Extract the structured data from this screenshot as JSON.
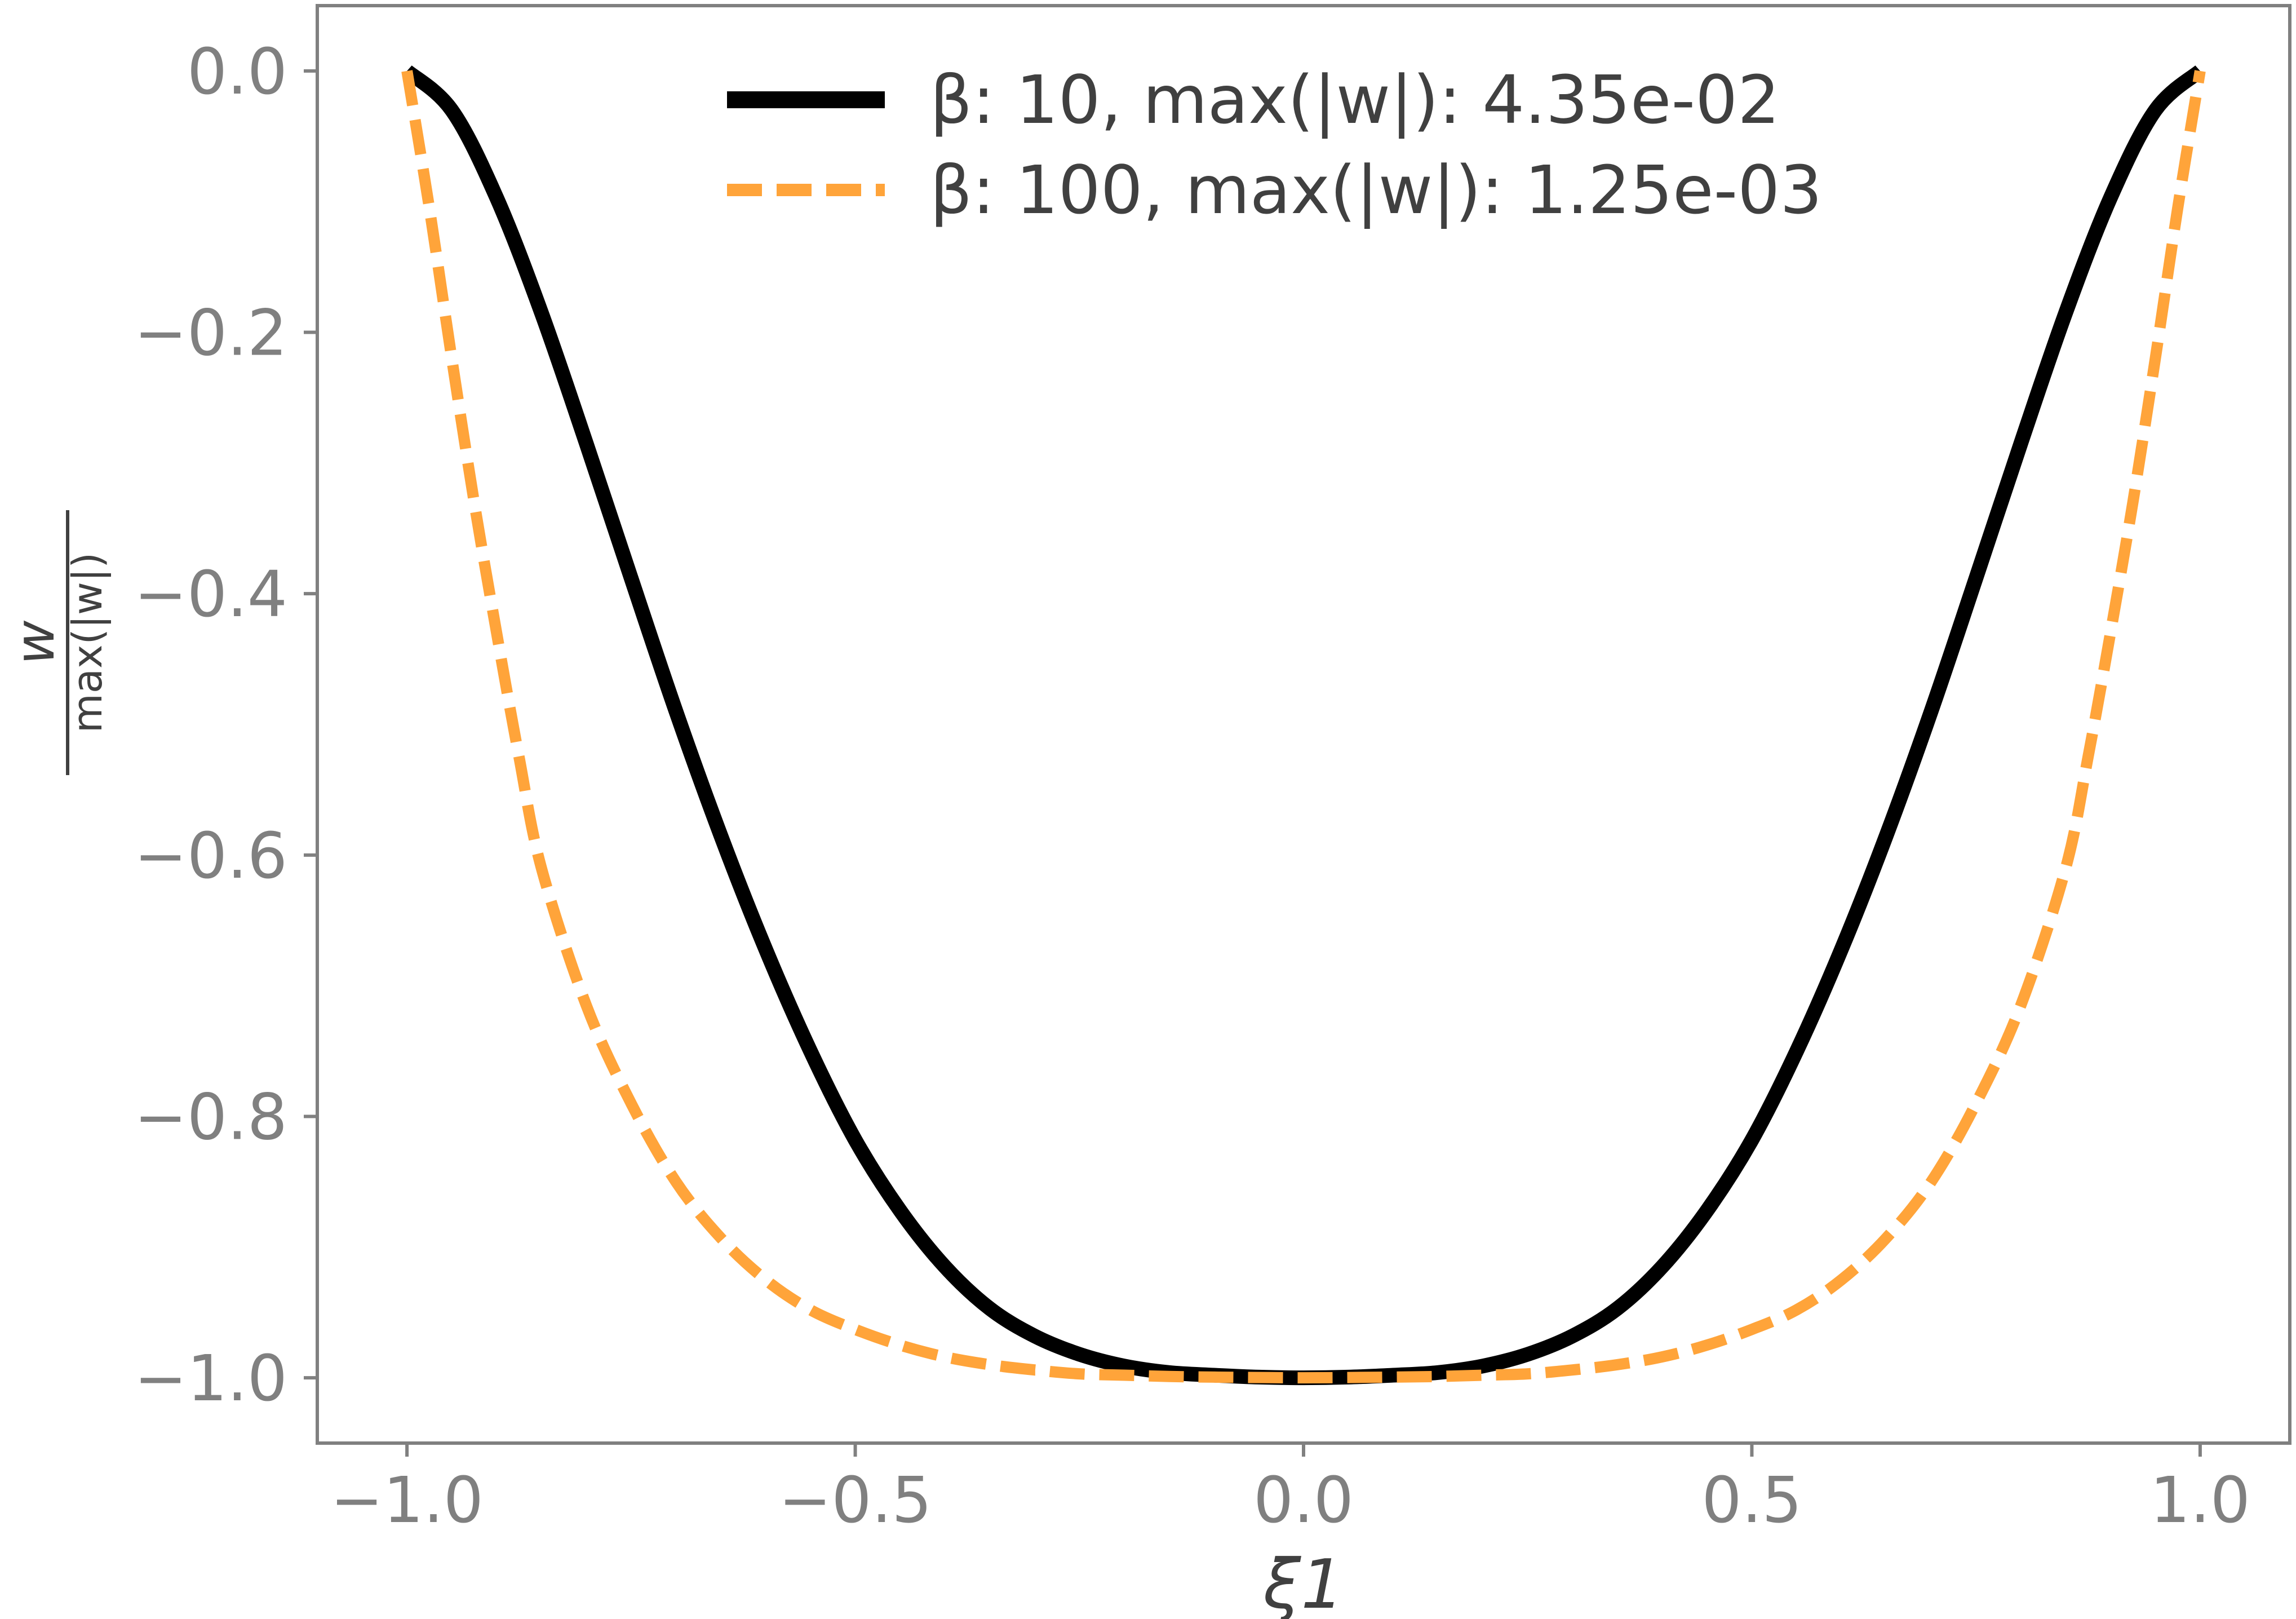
{
  "chart_data": {
    "type": "line",
    "xlabel": "ξ1",
    "ylabel_numerator": "w",
    "ylabel_denominator": "max(|w|)",
    "xlim": [
      -1.1,
      1.1
    ],
    "ylim": [
      -1.05,
      0.05
    ],
    "xticks": [
      -1.0,
      -0.5,
      0.0,
      0.5,
      1.0
    ],
    "yticks": [
      0.0,
      -0.2,
      -0.4,
      -0.6,
      -0.8,
      -1.0
    ],
    "xtick_labels": [
      "−1.0",
      "−0.5",
      "0.0",
      "0.5",
      "1.0"
    ],
    "ytick_labels": [
      "0.0",
      "−0.2",
      "−0.4",
      "−0.6",
      "−0.8",
      "−1.0"
    ],
    "grid": false,
    "legend_position": "top-center",
    "series": [
      {
        "name": "β: 10, max(|w|): 4.35e-02",
        "color": "#000000",
        "style": "solid",
        "x": [
          -1.0,
          -0.95,
          -0.9,
          -0.85,
          -0.8,
          -0.75,
          -0.7,
          -0.65,
          -0.6,
          -0.55,
          -0.5,
          -0.45,
          -0.4,
          -0.35,
          -0.3,
          -0.25,
          -0.2,
          -0.15,
          -0.1,
          -0.05,
          0.0,
          0.05,
          0.1,
          0.15,
          0.2,
          0.25,
          0.3,
          0.35,
          0.4,
          0.45,
          0.5,
          0.55,
          0.6,
          0.65,
          0.7,
          0.75,
          0.8,
          0.85,
          0.9,
          0.95,
          1.0
        ],
        "y": [
          0.0,
          -0.03,
          -0.097,
          -0.185,
          -0.285,
          -0.388,
          -0.49,
          -0.585,
          -0.672,
          -0.75,
          -0.818,
          -0.872,
          -0.915,
          -0.947,
          -0.968,
          -0.982,
          -0.991,
          -0.996,
          -0.998,
          -0.9995,
          -1.0,
          -0.9995,
          -0.998,
          -0.996,
          -0.991,
          -0.982,
          -0.968,
          -0.947,
          -0.915,
          -0.872,
          -0.818,
          -0.75,
          -0.672,
          -0.585,
          -0.49,
          -0.388,
          -0.285,
          -0.185,
          -0.097,
          -0.03,
          0.0
        ]
      },
      {
        "name": "β: 100, max(|w|): 1.25e-03",
        "color": "#FFA43A",
        "style": "dashed",
        "x": [
          -1.0,
          -0.975,
          -0.95,
          -0.925,
          -0.9,
          -0.875,
          -0.85,
          -0.8,
          -0.75,
          -0.7,
          -0.65,
          -0.6,
          -0.55,
          -0.5,
          -0.45,
          -0.4,
          -0.35,
          -0.3,
          -0.25,
          -0.2,
          -0.15,
          -0.1,
          -0.05,
          0.0,
          0.05,
          0.1,
          0.15,
          0.2,
          0.25,
          0.3,
          0.35,
          0.4,
          0.45,
          0.5,
          0.55,
          0.6,
          0.65,
          0.7,
          0.75,
          0.8,
          0.85,
          0.875,
          0.9,
          0.925,
          0.95,
          0.975,
          1.0
        ],
        "y": [
          0.0,
          -0.105,
          -0.22,
          -0.33,
          -0.43,
          -0.525,
          -0.61,
          -0.715,
          -0.79,
          -0.85,
          -0.893,
          -0.925,
          -0.948,
          -0.963,
          -0.975,
          -0.984,
          -0.99,
          -0.994,
          -0.997,
          -0.998,
          -0.999,
          -0.9995,
          -0.9998,
          -1.0,
          -0.9998,
          -0.9995,
          -0.999,
          -0.998,
          -0.997,
          -0.994,
          -0.99,
          -0.984,
          -0.975,
          -0.963,
          -0.948,
          -0.925,
          -0.893,
          -0.85,
          -0.79,
          -0.715,
          -0.61,
          -0.525,
          -0.43,
          -0.33,
          -0.22,
          -0.105,
          0.0
        ]
      }
    ]
  }
}
